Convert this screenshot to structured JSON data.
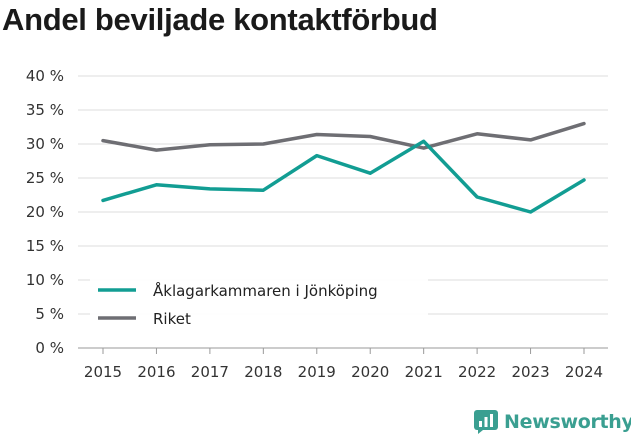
{
  "title": "Andel beviljade kontaktförbud",
  "brand": {
    "name": "Newsworthy",
    "icon": "bar-chart-logo-icon",
    "color": "#3a9f91"
  },
  "chart_data": {
    "type": "line",
    "title": "Andel beviljade kontaktförbud",
    "xlabel": "",
    "ylabel": "",
    "x": [
      "2015",
      "2016",
      "2017",
      "2018",
      "2019",
      "2020",
      "2021",
      "2022",
      "2023",
      "2024"
    ],
    "ylim": [
      0,
      40
    ],
    "yticks": [
      0,
      5,
      10,
      15,
      20,
      25,
      30,
      35,
      40
    ],
    "ytick_labels": [
      "0 %",
      "5 %",
      "10 %",
      "15 %",
      "20 %",
      "25 %",
      "30 %",
      "35 %",
      "40 %"
    ],
    "grid": true,
    "legend_position": "bottom-left",
    "series": [
      {
        "name": "Åklagarkammaren i Jönköping",
        "color": "#129d93",
        "values": [
          21.7,
          24.0,
          23.4,
          23.2,
          28.3,
          25.7,
          30.4,
          22.2,
          20.0,
          24.7
        ]
      },
      {
        "name": "Riket",
        "color": "#6e6e73",
        "values": [
          30.5,
          29.1,
          29.9,
          30.0,
          31.4,
          31.1,
          29.4,
          31.5,
          30.6,
          33.0
        ]
      }
    ]
  }
}
